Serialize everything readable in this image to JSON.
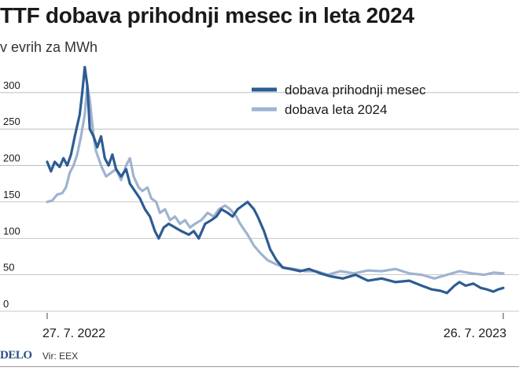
{
  "header": {
    "title": "TTF dobava prihodnji mesec in leta 2024",
    "subtitle": "v evrih za MWh"
  },
  "footer": {
    "logo": "DELO",
    "source": "Vir: EEX"
  },
  "colors": {
    "series1": "#2d5c92",
    "series2": "#9fb3d1",
    "grid": "#b5b5b5",
    "text": "#1a1a1a"
  },
  "chart_data": {
    "type": "line",
    "title": "TTF dobava prihodnji mesec in leta 2024",
    "subtitle": "v evrih za MWh",
    "xlabel": "",
    "ylabel": "",
    "x_ticks": [
      "27. 7. 2022",
      "26. 7. 2023"
    ],
    "x_range": [
      "27. 7. 2022",
      "26. 7. 2023"
    ],
    "y_ticks": [
      0,
      50,
      100,
      150,
      200,
      250,
      300
    ],
    "ylim": [
      0,
      330
    ],
    "grid": true,
    "legend": "top-right",
    "series": [
      {
        "name": "dobava prihodnji mesec",
        "color": "#2d5c92",
        "points": [
          [
            "2022-07-27",
            205
          ],
          [
            "2022-07-30",
            192
          ],
          [
            "2022-08-02",
            205
          ],
          [
            "2022-08-06",
            198
          ],
          [
            "2022-08-09",
            210
          ],
          [
            "2022-08-12",
            200
          ],
          [
            "2022-08-15",
            215
          ],
          [
            "2022-08-18",
            240
          ],
          [
            "2022-08-22",
            270
          ],
          [
            "2022-08-24",
            300
          ],
          [
            "2022-08-26",
            335
          ],
          [
            "2022-08-28",
            310
          ],
          [
            "2022-08-30",
            250
          ],
          [
            "2022-09-02",
            240
          ],
          [
            "2022-09-05",
            225
          ],
          [
            "2022-09-08",
            240
          ],
          [
            "2022-09-11",
            210
          ],
          [
            "2022-09-14",
            200
          ],
          [
            "2022-09-17",
            215
          ],
          [
            "2022-09-20",
            195
          ],
          [
            "2022-09-24",
            185
          ],
          [
            "2022-09-28",
            195
          ],
          [
            "2022-10-01",
            175
          ],
          [
            "2022-10-05",
            165
          ],
          [
            "2022-10-09",
            155
          ],
          [
            "2022-10-13",
            140
          ],
          [
            "2022-10-17",
            130
          ],
          [
            "2022-10-21",
            110
          ],
          [
            "2022-10-24",
            100
          ],
          [
            "2022-10-28",
            115
          ],
          [
            "2022-11-01",
            120
          ],
          [
            "2022-11-06",
            115
          ],
          [
            "2022-11-11",
            110
          ],
          [
            "2022-11-17",
            105
          ],
          [
            "2022-11-21",
            110
          ],
          [
            "2022-11-25",
            100
          ],
          [
            "2022-11-30",
            120
          ],
          [
            "2022-12-05",
            125
          ],
          [
            "2022-12-09",
            130
          ],
          [
            "2022-12-13",
            140
          ],
          [
            "2022-12-18",
            135
          ],
          [
            "2022-12-22",
            130
          ],
          [
            "2022-12-26",
            140
          ],
          [
            "2022-12-30",
            145
          ],
          [
            "2023-01-03",
            150
          ],
          [
            "2023-01-08",
            140
          ],
          [
            "2023-01-11",
            130
          ],
          [
            "2023-01-16",
            110
          ],
          [
            "2023-01-21",
            85
          ],
          [
            "2023-01-26",
            70
          ],
          [
            "2023-01-31",
            60
          ],
          [
            "2023-02-06",
            58
          ],
          [
            "2023-02-14",
            55
          ],
          [
            "2023-02-21",
            58
          ],
          [
            "2023-03-02",
            52
          ],
          [
            "2023-03-10",
            48
          ],
          [
            "2023-03-20",
            45
          ],
          [
            "2023-03-30",
            50
          ],
          [
            "2023-04-09",
            42
          ],
          [
            "2023-04-20",
            45
          ],
          [
            "2023-05-01",
            40
          ],
          [
            "2023-05-12",
            42
          ],
          [
            "2023-05-22",
            35
          ],
          [
            "2023-05-30",
            30
          ],
          [
            "2023-06-06",
            28
          ],
          [
            "2023-06-11",
            25
          ],
          [
            "2023-06-17",
            35
          ],
          [
            "2023-06-21",
            40
          ],
          [
            "2023-06-26",
            35
          ],
          [
            "2023-07-02",
            38
          ],
          [
            "2023-07-08",
            32
          ],
          [
            "2023-07-13",
            30
          ],
          [
            "2023-07-18",
            27
          ],
          [
            "2023-07-22",
            30
          ],
          [
            "2023-07-26",
            32
          ]
        ]
      },
      {
        "name": "dobava leta 2024",
        "color": "#9fb3d1",
        "points": [
          [
            "2022-07-27",
            150
          ],
          [
            "2022-07-31",
            152
          ],
          [
            "2022-08-04",
            160
          ],
          [
            "2022-08-08",
            162
          ],
          [
            "2022-08-11",
            170
          ],
          [
            "2022-08-14",
            190
          ],
          [
            "2022-08-17",
            200
          ],
          [
            "2022-08-20",
            215
          ],
          [
            "2022-08-23",
            240
          ],
          [
            "2022-08-26",
            270
          ],
          [
            "2022-08-28",
            310
          ],
          [
            "2022-08-30",
            290
          ],
          [
            "2022-09-02",
            240
          ],
          [
            "2022-09-04",
            220
          ],
          [
            "2022-09-08",
            200
          ],
          [
            "2022-09-12",
            185
          ],
          [
            "2022-09-16",
            190
          ],
          [
            "2022-09-20",
            195
          ],
          [
            "2022-09-24",
            180
          ],
          [
            "2022-09-28",
            200
          ],
          [
            "2022-10-01",
            210
          ],
          [
            "2022-10-04",
            185
          ],
          [
            "2022-10-08",
            170
          ],
          [
            "2022-10-11",
            165
          ],
          [
            "2022-10-15",
            170
          ],
          [
            "2022-10-18",
            155
          ],
          [
            "2022-10-22",
            150
          ],
          [
            "2022-10-25",
            135
          ],
          [
            "2022-10-29",
            140
          ],
          [
            "2022-11-02",
            125
          ],
          [
            "2022-11-06",
            130
          ],
          [
            "2022-11-10",
            120
          ],
          [
            "2022-11-14",
            125
          ],
          [
            "2022-11-18",
            115
          ],
          [
            "2022-11-22",
            120
          ],
          [
            "2022-11-27",
            125
          ],
          [
            "2022-12-02",
            135
          ],
          [
            "2022-12-07",
            130
          ],
          [
            "2022-12-11",
            140
          ],
          [
            "2022-12-16",
            145
          ],
          [
            "2022-12-20",
            140
          ],
          [
            "2022-12-25",
            130
          ],
          [
            "2022-12-28",
            120
          ],
          [
            "2023-01-03",
            105
          ],
          [
            "2023-01-08",
            90
          ],
          [
            "2023-01-13",
            80
          ],
          [
            "2023-01-19",
            70
          ],
          [
            "2023-01-25",
            65
          ],
          [
            "2023-02-01",
            60
          ],
          [
            "2023-02-09",
            58
          ],
          [
            "2023-02-18",
            55
          ],
          [
            "2023-02-27",
            55
          ],
          [
            "2023-03-08",
            50
          ],
          [
            "2023-03-18",
            55
          ],
          [
            "2023-03-29",
            52
          ],
          [
            "2023-04-09",
            56
          ],
          [
            "2023-04-20",
            55
          ],
          [
            "2023-05-01",
            58
          ],
          [
            "2023-05-12",
            52
          ],
          [
            "2023-05-22",
            50
          ],
          [
            "2023-06-01",
            45
          ],
          [
            "2023-06-11",
            50
          ],
          [
            "2023-06-21",
            55
          ],
          [
            "2023-07-01",
            52
          ],
          [
            "2023-07-11",
            50
          ],
          [
            "2023-07-18",
            53
          ],
          [
            "2023-07-26",
            52
          ]
        ]
      }
    ]
  }
}
